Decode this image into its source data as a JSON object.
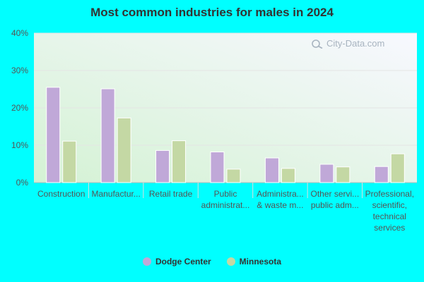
{
  "title": "Most common industries for males in 2024",
  "watermark": "City-Data.com",
  "colors": {
    "dodge_center": "#c0a8d8",
    "minnesota": "#c4d8a4",
    "grid": "#e4e4e4",
    "axis": "#bbbbbb"
  },
  "legend": [
    {
      "name": "Dodge Center",
      "color": "#c0a8d8"
    },
    {
      "name": "Minnesota",
      "color": "#c4d8a4"
    }
  ],
  "chart_data": {
    "type": "bar",
    "title": "Most common industries for males in 2024",
    "categories": [
      [
        "Construction"
      ],
      [
        "Manufactur..."
      ],
      [
        "Retail trade"
      ],
      [
        "Public",
        "administrat..."
      ],
      [
        "Administra...",
        "& waste m..."
      ],
      [
        "Other servi...",
        "public adm..."
      ],
      [
        "Professional,",
        "scientific,",
        "technical",
        "services"
      ]
    ],
    "series": [
      {
        "name": "Dodge Center",
        "values": [
          25.5,
          25.1,
          8.6,
          8.2,
          6.6,
          4.9,
          4.3
        ]
      },
      {
        "name": "Minnesota",
        "values": [
          11.1,
          17.3,
          11.2,
          3.6,
          3.8,
          4.2,
          7.7
        ]
      }
    ],
    "ylim": [
      0,
      40
    ],
    "yticks": [
      "0%",
      "10%",
      "20%",
      "30%",
      "40%"
    ],
    "xlabel": "",
    "ylabel": "",
    "grid": true,
    "legend_position": "bottom"
  }
}
